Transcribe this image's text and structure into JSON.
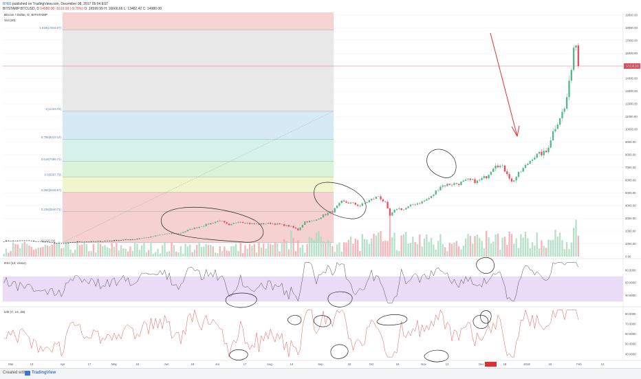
{
  "header": {
    "user": "BH83",
    "published": "published on TradingView.com, December 08, 2017 05:04 EST",
    "symbol": "BITSTAMP:BTCUSD, D",
    "last": "14980.00",
    "change": "-1619.99 (-9.76%)",
    "ohlc": "O: 16599.99 H: 16666.66 L: 13482.42 C: 14980.00"
  },
  "footer": {
    "created_with": "Created with",
    "brand": "TradingView"
  },
  "chart_data": {
    "type": "candlestick",
    "title": "Bitcoin / Dollar, D, BITSTAMP",
    "volume_label": "Vol (20)",
    "price_axis": {
      "ylim": [
        0,
        19200
      ],
      "ticks": [
        0,
        1000,
        2000,
        3000,
        4000,
        5000,
        6000,
        7000,
        8000,
        9000,
        10000,
        11000,
        12000,
        13000,
        14000,
        15000,
        16000,
        17000,
        18000,
        19000
      ],
      "tick_labels": [
        "0.00",
        "1000.00",
        "2000.00",
        "3000.00",
        "4000.00",
        "5000.00",
        "6000.00",
        "7000.00",
        "8000.00",
        "9000.00",
        "10000.00",
        "11000.00",
        "12000.00",
        "13000.00",
        "14000.00",
        "15000.00",
        "16000.00",
        "17000.00",
        "18000.00",
        "19000.00"
      ]
    },
    "last_price": 14980,
    "last_price_label": "14980.00",
    "time_axis": [
      "Mar",
      "13",
      "Apr",
      "17",
      "May",
      "15",
      "Jun",
      "19",
      "Jul",
      "17",
      "Aug",
      "14",
      "Sep",
      "18",
      "Oct",
      "16",
      "Nov",
      "13",
      "Dec",
      "18",
      "2018",
      "15",
      "Feb",
      "12"
    ],
    "fibonacci": {
      "from_label": "0(1102.09)",
      "levels": [
        {
          "ratio": 0,
          "price": 1102.09,
          "label": "",
          "color": "#f4cccc"
        },
        {
          "ratio": 0.236,
          "price": 3540.71,
          "label": "0.236(3540.71)",
          "color": "#f4cccc"
        },
        {
          "ratio": 0.382,
          "price": 5048.97,
          "label": "0.382(5048.97)",
          "color": "#f0f4c8"
        },
        {
          "ratio": 0.5,
          "price": 6267.79,
          "label": "0.5(6267.79)",
          "color": "#d4f2d4"
        },
        {
          "ratio": 0.618,
          "price": 7486.71,
          "label": "0.618(7486.71)",
          "color": "#d0f0e8"
        },
        {
          "ratio": 0.786,
          "price": 9222.13,
          "label": "0.786(9222.13)",
          "color": "#d0e8f4"
        },
        {
          "ratio": 1,
          "price": 11433.72,
          "label": "1(11433.72)",
          "color": "#e6e6e6"
        },
        {
          "ratio": 1.618,
          "price": 17816.57,
          "label": "1.618(17816.57)",
          "color": "#d2d2f6"
        }
      ]
    },
    "rsi": {
      "label": "RSI (14, close)",
      "range": [
        25,
        95
      ],
      "band": [
        30,
        70
      ],
      "ticks": [
        40,
        60,
        80
      ],
      "tick_labels": [
        "40.0000",
        "60.0000",
        "80.0000"
      ]
    },
    "uo": {
      "label": "UO (7, 14, 28)",
      "range": [
        35,
        85
      ],
      "ticks": [
        40,
        50,
        60,
        70,
        80
      ],
      "tick_labels": [
        "40.0000",
        "50.0000",
        "60.0000",
        "70.0000",
        "80.0000"
      ]
    },
    "price_anchors": [
      [
        0,
        1220
      ],
      [
        10,
        1250
      ],
      [
        18,
        1150
      ],
      [
        25,
        1010
      ],
      [
        32,
        1160
      ],
      [
        40,
        1180
      ],
      [
        48,
        1260
      ],
      [
        56,
        1350
      ],
      [
        64,
        1550
      ],
      [
        70,
        1780
      ],
      [
        76,
        1800
      ],
      [
        82,
        2200
      ],
      [
        88,
        2500
      ],
      [
        94,
        2850
      ],
      [
        98,
        2420
      ],
      [
        102,
        2780
      ],
      [
        107,
        2600
      ],
      [
        111,
        2550
      ],
      [
        116,
        2620
      ],
      [
        121,
        2500
      ],
      [
        125,
        2350
      ],
      [
        128,
        2100
      ],
      [
        131,
        2750
      ],
      [
        135,
        2800
      ],
      [
        139,
        3250
      ],
      [
        143,
        3550
      ],
      [
        147,
        4300
      ],
      [
        151,
        4200
      ],
      [
        155,
        4000
      ],
      [
        159,
        4400
      ],
      [
        163,
        4750
      ],
      [
        166,
        4200
      ],
      [
        168,
        3200
      ],
      [
        171,
        3800
      ],
      [
        174,
        3700
      ],
      [
        178,
        4100
      ],
      [
        182,
        4300
      ],
      [
        186,
        4700
      ],
      [
        190,
        5550
      ],
      [
        194,
        5700
      ],
      [
        198,
        5750
      ],
      [
        202,
        6000
      ],
      [
        206,
        5900
      ],
      [
        210,
        6300
      ],
      [
        214,
        7300
      ],
      [
        217,
        7000
      ],
      [
        219,
        6600
      ],
      [
        221,
        5850
      ],
      [
        224,
        6500
      ],
      [
        227,
        7100
      ],
      [
        230,
        7800
      ],
      [
        233,
        8050
      ],
      [
        236,
        8200
      ],
      [
        239,
        9800
      ],
      [
        242,
        11000
      ],
      [
        244,
        11600
      ],
      [
        246,
        13500
      ],
      [
        248,
        16500
      ],
      [
        250,
        14980
      ]
    ]
  },
  "annotations": {
    "colors": {
      "up": "#53b987",
      "down": "#eb4d5c",
      "annotation": "#e03030",
      "rsi": "#4a4a4a",
      "uo": "#e8554e"
    }
  }
}
